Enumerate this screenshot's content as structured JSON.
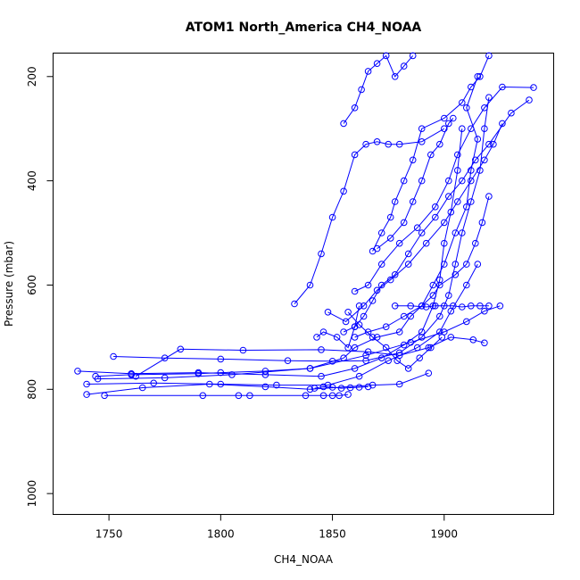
{
  "chart_data": {
    "type": "line",
    "title": "ATOM1 North_America CH4_NOAA",
    "xlabel": "CH4_NOAA",
    "ylabel": "Pressure (mbar)",
    "xlim": [
      1725,
      1949
    ],
    "ylim": [
      1040,
      155
    ],
    "y_reversed": true,
    "xticks": [
      1750,
      1800,
      1850,
      1900
    ],
    "yticks": [
      200,
      400,
      600,
      800,
      1000
    ],
    "grid": false,
    "legend": "none",
    "marker": "open-circle",
    "color": "#0000ff",
    "series": [
      {
        "x": [
          1744,
          1760,
          1790,
          1800,
          1820,
          1840,
          1855,
          1860,
          1870,
          1880,
          1885,
          1890,
          1895,
          1900,
          1905,
          1910,
          1912,
          1915,
          1910,
          1915
        ],
        "y": [
          775,
          772,
          770,
          768,
          765,
          760,
          740,
          720,
          700,
          690,
          660,
          640,
          600,
          560,
          500,
          450,
          380,
          320,
          260,
          200
        ]
      },
      {
        "x": [
          1752,
          1775,
          1800,
          1830,
          1850,
          1865,
          1880,
          1890,
          1898,
          1902,
          1905,
          1908,
          1912,
          1916,
          1918,
          1920
        ],
        "y": [
          737,
          740,
          742,
          745,
          746,
          745,
          730,
          700,
          660,
          620,
          560,
          500,
          440,
          380,
          300,
          240
        ]
      },
      {
        "x": [
          1736,
          1760,
          1790,
          1820,
          1845,
          1860,
          1872,
          1882,
          1890,
          1895,
          1898,
          1900,
          1903,
          1906,
          1908
        ],
        "y": [
          765,
          770,
          768,
          772,
          775,
          760,
          740,
          715,
          690,
          640,
          590,
          520,
          460,
          380,
          300
        ]
      },
      {
        "x": [
          1740,
          1770,
          1800,
          1825,
          1848,
          1862,
          1875,
          1888,
          1898,
          1903,
          1910,
          1915
        ],
        "y": [
          790,
          788,
          790,
          792,
          792,
          775,
          745,
          720,
          690,
          650,
          600,
          560
        ]
      },
      {
        "x": [
          1748,
          1792,
          1808,
          1813,
          1838,
          1846,
          1850,
          1853,
          1857
        ],
        "y": [
          812,
          812,
          812,
          812,
          812,
          812,
          812,
          812,
          810
        ]
      },
      {
        "x": [
          1762,
          1782,
          1810,
          1845,
          1866,
          1880,
          1893,
          1903,
          1913,
          1918
        ],
        "y": [
          775,
          723,
          725,
          724,
          728,
          735,
          720,
          700,
          705,
          711
        ]
      },
      {
        "x": [
          1740,
          1765,
          1795,
          1820,
          1840,
          1868,
          1880,
          1893
        ],
        "y": [
          810,
          797,
          790,
          795,
          800,
          792,
          790,
          769
        ]
      },
      {
        "x": [
          1833,
          1840,
          1845,
          1850,
          1855,
          1860,
          1865,
          1870,
          1875,
          1880,
          1890,
          1900
        ],
        "y": [
          636,
          600,
          540,
          470,
          420,
          350,
          330,
          325,
          330,
          330,
          325,
          300
        ]
      },
      {
        "x": [
          1868,
          1872,
          1876,
          1878,
          1882,
          1886,
          1890,
          1900,
          1908,
          1912,
          1916,
          1920
        ],
        "y": [
          535,
          500,
          470,
          440,
          400,
          360,
          300,
          280,
          250,
          220,
          200,
          160
        ]
      },
      {
        "x": [
          1843,
          1846,
          1852,
          1857,
          1860,
          1862
        ],
        "y": [
          700,
          690,
          700,
          720,
          680,
          640
        ]
      },
      {
        "x": [
          1860,
          1866,
          1874,
          1882,
          1890,
          1895,
          1898,
          1905,
          1910,
          1914,
          1917,
          1920
        ],
        "y": [
          700,
          690,
          680,
          660,
          640,
          620,
          600,
          580,
          560,
          520,
          480,
          430
        ]
      },
      {
        "x": [
          1848,
          1856,
          1864,
          1870,
          1876,
          1884,
          1892,
          1900,
          1906,
          1912,
          1918,
          1922,
          1926
        ],
        "y": [
          652,
          670,
          640,
          610,
          590,
          560,
          520,
          480,
          440,
          400,
          360,
          330,
          290
        ]
      },
      {
        "x": [
          1855,
          1860,
          1864,
          1868,
          1872,
          1878,
          1884,
          1890,
          1896,
          1902,
          1908,
          1914,
          1920,
          1930,
          1938
        ],
        "y": [
          690,
          680,
          660,
          630,
          600,
          580,
          540,
          500,
          470,
          430,
          400,
          360,
          330,
          270,
          245
        ]
      },
      {
        "x": [
          1855,
          1860,
          1863,
          1866,
          1870,
          1874,
          1878,
          1882,
          1886
        ],
        "y": [
          290,
          260,
          225,
          190,
          175,
          160,
          200,
          180,
          160
        ]
      },
      {
        "x": [
          1860,
          1866,
          1872,
          1880,
          1888,
          1896,
          1902,
          1906,
          1912,
          1918,
          1926,
          1940
        ],
        "y": [
          612,
          600,
          560,
          520,
          490,
          450,
          400,
          350,
          300,
          260,
          220,
          221
        ]
      },
      {
        "x": [
          1870,
          1876,
          1882,
          1886,
          1890,
          1894,
          1898,
          1902,
          1904
        ],
        "y": [
          530,
          510,
          480,
          440,
          400,
          350,
          330,
          290,
          280
        ]
      },
      {
        "x": [
          1878,
          1885,
          1892,
          1896,
          1900,
          1904,
          1908,
          1912,
          1916,
          1920
        ],
        "y": [
          640,
          640,
          642,
          640,
          640,
          640,
          642,
          640,
          640,
          640
        ]
      },
      {
        "x": [
          1745,
          1775,
          1805,
          1840,
          1865,
          1885,
          1900,
          1910,
          1918,
          1925
        ],
        "y": [
          780,
          778,
          772,
          760,
          735,
          710,
          690,
          670,
          650,
          640
        ]
      },
      {
        "x": [
          1857,
          1862,
          1868,
          1874,
          1879,
          1884,
          1889,
          1894,
          1899
        ],
        "y": [
          652,
          676,
          700,
          720,
          745,
          760,
          740,
          720,
          700
        ]
      },
      {
        "x": [
          1842,
          1846,
          1850,
          1854,
          1858,
          1862,
          1866
        ],
        "y": [
          798,
          795,
          796,
          798,
          797,
          796,
          795
        ]
      }
    ]
  }
}
